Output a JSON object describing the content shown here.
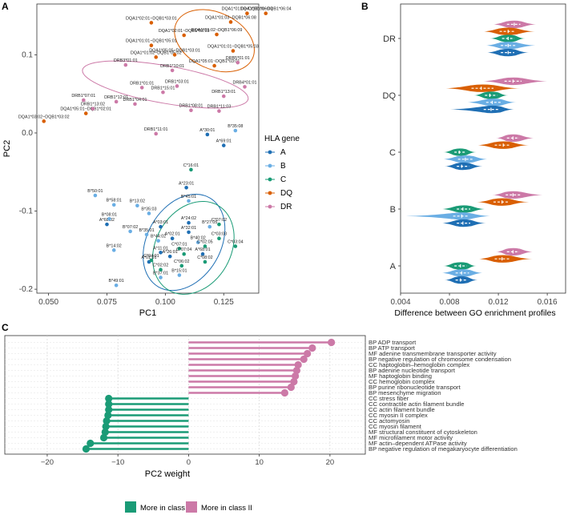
{
  "panels": {
    "a": "A",
    "b": "B",
    "c": "C"
  },
  "colors": {
    "A": "#1f6fb4",
    "B": "#6aaee4",
    "C": "#1a9b76",
    "DQ": "#d95f02",
    "DR": "#cc79a7",
    "class1": "#1a9b76",
    "class2": "#cc79a7"
  },
  "chart_data": [
    {
      "type": "scatter",
      "panel": "A",
      "xlabel": "PC1",
      "ylabel": "PC2",
      "xlim": [
        0.045,
        0.14
      ],
      "ylim": [
        -0.205,
        0.165
      ],
      "xticks": [
        0.05,
        0.075,
        0.1,
        0.125
      ],
      "xtick_labels": [
        "0.050",
        "0.075",
        "0.100",
        "0.125"
      ],
      "yticks": [
        0.1,
        0.0,
        -0.1,
        -0.2
      ],
      "ytick_labels": [
        "0.1",
        "0.0",
        "-0.1",
        "-0.2"
      ],
      "legend_title": "HLA gene",
      "legend_position": "right",
      "legend": [
        "A",
        "B",
        "C",
        "DQ",
        "DR"
      ],
      "series": [
        {
          "name": "A",
          "points": [
            {
              "label": "A*30:01",
              "x": 0.118,
              "y": -0.002
            },
            {
              "label": "A*69:01",
              "x": 0.125,
              "y": -0.016
            },
            {
              "label": "A*23:01",
              "x": 0.109,
              "y": -0.07
            },
            {
              "label": "A*24:02",
              "x": 0.11,
              "y": -0.115
            },
            {
              "label": "A*68:02",
              "x": 0.075,
              "y": -0.117
            },
            {
              "label": "A*03:01",
              "x": 0.098,
              "y": -0.12
            },
            {
              "label": "A*32:01",
              "x": 0.11,
              "y": -0.127
            },
            {
              "label": "A*02:01",
              "x": 0.103,
              "y": -0.135
            },
            {
              "label": "A*11:01",
              "x": 0.098,
              "y": -0.153
            },
            {
              "label": "A*68:01",
              "x": 0.116,
              "y": -0.155
            },
            {
              "label": "A*26:01",
              "x": 0.102,
              "y": -0.158
            },
            {
              "label": "A*01:01",
              "x": 0.093,
              "y": -0.165
            }
          ]
        },
        {
          "name": "B",
          "points": [
            {
              "label": "B*35:08",
              "x": 0.13,
              "y": 0.003
            },
            {
              "label": "B*45:01",
              "x": 0.11,
              "y": -0.087
            },
            {
              "label": "B*50:01",
              "x": 0.07,
              "y": -0.08
            },
            {
              "label": "B*58:01",
              "x": 0.078,
              "y": -0.092
            },
            {
              "label": "B*13:02",
              "x": 0.088,
              "y": -0.093
            },
            {
              "label": "B*08:01",
              "x": 0.076,
              "y": -0.11
            },
            {
              "label": "B*07:02",
              "x": 0.085,
              "y": -0.126
            },
            {
              "label": "B*35:01",
              "x": 0.092,
              "y": -0.13
            },
            {
              "label": "B*44:02",
              "x": 0.097,
              "y": -0.138
            },
            {
              "label": "B*14:02",
              "x": 0.078,
              "y": -0.15
            },
            {
              "label": "B*15:01",
              "x": 0.106,
              "y": -0.182
            },
            {
              "label": "B*37:01",
              "x": 0.098,
              "y": -0.185
            },
            {
              "label": "B*49:01",
              "x": 0.079,
              "y": -0.195
            },
            {
              "label": "B*40:02",
              "x": 0.114,
              "y": -0.14
            },
            {
              "label": "B*27:05",
              "x": 0.119,
              "y": -0.12
            },
            {
              "label": "B*35:03",
              "x": 0.093,
              "y": -0.103
            }
          ]
        },
        {
          "name": "C",
          "points": [
            {
              "label": "C*16:01",
              "x": 0.111,
              "y": -0.047
            },
            {
              "label": "C*07:02",
              "x": 0.123,
              "y": -0.117
            },
            {
              "label": "C*03:03",
              "x": 0.123,
              "y": -0.135
            },
            {
              "label": "C*03:04",
              "x": 0.13,
              "y": -0.145
            },
            {
              "label": "C*07:01",
              "x": 0.106,
              "y": -0.148
            },
            {
              "label": "C*02:05",
              "x": 0.117,
              "y": -0.145
            },
            {
              "label": "C*07:04",
              "x": 0.108,
              "y": -0.155
            },
            {
              "label": "C*04:01",
              "x": 0.094,
              "y": -0.163
            },
            {
              "label": "C*06:02",
              "x": 0.107,
              "y": -0.17
            },
            {
              "label": "C*02:02",
              "x": 0.098,
              "y": -0.175
            },
            {
              "label": "C*08:02",
              "x": 0.117,
              "y": -0.165
            }
          ]
        },
        {
          "name": "DQ",
          "points": [
            {
              "label": "DQA1*02:01~DQB1*03:01",
              "x": 0.094,
              "y": 0.141
            },
            {
              "label": "DQA1*02:01~DQB1*03:03",
              "x": 0.108,
              "y": 0.125
            },
            {
              "label": "DQA1*01:03~DQB1*06:03",
              "x": 0.135,
              "y": 0.153
            },
            {
              "label": "DQA1*02:01~DQB1*06:04",
              "x": 0.143,
              "y": 0.153
            },
            {
              "label": "DQA1*01:03~DQB1*06:08",
              "x": 0.128,
              "y": 0.142
            },
            {
              "label": "DQA1*01:01~DQB1*05:01",
              "x": 0.094,
              "y": 0.112
            },
            {
              "label": "DQA1*01:02~DQB1*05:02",
              "x": 0.096,
              "y": 0.097
            },
            {
              "label": "DQA1*05:05~DQB1*03:01",
              "x": 0.104,
              "y": 0.1
            },
            {
              "label": "DQA1*05:01~DQB1*02:01",
              "x": 0.066,
              "y": 0.025
            },
            {
              "label": "DQA1*03:02~DQB1*03:02",
              "x": 0.048,
              "y": 0.015
            },
            {
              "label": "DQA1*01:02~DQB1*06:09",
              "x": 0.122,
              "y": 0.126
            },
            {
              "label": "DQA1*05:01~DQB1*03:01",
              "x": 0.121,
              "y": 0.086
            },
            {
              "label": "DQA1*01:01~DQB1*05:03",
              "x": 0.129,
              "y": 0.105
            }
          ]
        },
        {
          "name": "DR",
          "points": [
            {
              "label": "DRB3*01:01",
              "x": 0.083,
              "y": 0.087
            },
            {
              "label": "DRB1*07:01",
              "x": 0.065,
              "y": 0.042
            },
            {
              "label": "DRB1*12:01",
              "x": 0.079,
              "y": 0.04
            },
            {
              "label": "DRB1*01:01",
              "x": 0.09,
              "y": 0.058
            },
            {
              "label": "DRB1*15:01",
              "x": 0.099,
              "y": 0.052
            },
            {
              "label": "DRB1*03:01",
              "x": 0.105,
              "y": 0.06
            },
            {
              "label": "DRB1*13:02",
              "x": 0.069,
              "y": 0.031
            },
            {
              "label": "DRB1*04:01",
              "x": 0.087,
              "y": 0.037
            },
            {
              "label": "DRB1*08:01",
              "x": 0.111,
              "y": 0.029
            },
            {
              "label": "DRB1*11:01",
              "x": 0.096,
              "y": -0.001
            },
            {
              "label": "DRB1*11:03",
              "x": 0.123,
              "y": 0.028
            },
            {
              "label": "DRB1*13:01",
              "x": 0.125,
              "y": 0.047
            },
            {
              "label": "DRB4*01:01",
              "x": 0.134,
              "y": 0.059
            },
            {
              "label": "DRB1*10:01",
              "x": 0.103,
              "y": 0.08
            },
            {
              "label": "DRB5*01:01",
              "x": 0.131,
              "y": 0.09
            }
          ]
        }
      ]
    },
    {
      "type": "violin",
      "panel": "B",
      "xlabel": "Difference between GO enrichment profiles",
      "xlim": [
        0.004,
        0.0175
      ],
      "xticks": [
        0.004,
        0.008,
        0.012,
        0.016
      ],
      "xtick_labels": [
        "0.004",
        "0.008",
        "0.012",
        "0.016"
      ],
      "categories": [
        "DR",
        "DQ",
        "C",
        "B",
        "A"
      ],
      "series_order": [
        "DR",
        "DQ",
        "C",
        "B",
        "A"
      ],
      "groups": [
        {
          "category": "DR",
          "violins": [
            {
              "series": "DR",
              "min": 0.0115,
              "q1": 0.0127,
              "median": 0.0133,
              "q3": 0.0138,
              "max": 0.0152
            },
            {
              "series": "DQ",
              "min": 0.0107,
              "q1": 0.0121,
              "median": 0.0128,
              "q3": 0.0134,
              "max": 0.015
            },
            {
              "series": "C",
              "min": 0.0113,
              "q1": 0.0123,
              "median": 0.0128,
              "q3": 0.0133,
              "max": 0.0142
            },
            {
              "series": "B",
              "min": 0.0109,
              "q1": 0.0122,
              "median": 0.0128,
              "q3": 0.0134,
              "max": 0.0152
            },
            {
              "series": "A",
              "min": 0.011,
              "q1": 0.0122,
              "median": 0.0128,
              "q3": 0.0133,
              "max": 0.0145
            }
          ]
        },
        {
          "category": "DQ",
          "violins": [
            {
              "series": "DR",
              "min": 0.0106,
              "q1": 0.0125,
              "median": 0.0132,
              "q3": 0.0139,
              "max": 0.0162
            },
            {
              "series": "DQ",
              "min": 0.0075,
              "q1": 0.0098,
              "median": 0.0106,
              "q3": 0.0116,
              "max": 0.0138
            },
            {
              "series": "C",
              "min": 0.01,
              "q1": 0.0109,
              "median": 0.0113,
              "q3": 0.0119,
              "max": 0.0128
            },
            {
              "series": "B",
              "min": 0.0093,
              "q1": 0.011,
              "median": 0.0115,
              "q3": 0.0122,
              "max": 0.0135
            },
            {
              "series": "A",
              "min": 0.0078,
              "q1": 0.0108,
              "median": 0.0114,
              "q3": 0.0121,
              "max": 0.0133
            }
          ]
        },
        {
          "category": "C",
          "violins": [
            {
              "series": "DR",
              "min": 0.0118,
              "q1": 0.0127,
              "median": 0.0132,
              "q3": 0.0137,
              "max": 0.015
            },
            {
              "series": "DQ",
              "min": 0.0102,
              "q1": 0.0117,
              "median": 0.0124,
              "q3": 0.013,
              "max": 0.0145
            },
            {
              "series": "C",
              "min": 0.0075,
              "q1": 0.0084,
              "median": 0.0088,
              "q3": 0.0093,
              "max": 0.0102
            },
            {
              "series": "B",
              "min": 0.0074,
              "q1": 0.0087,
              "median": 0.0093,
              "q3": 0.0099,
              "max": 0.0112
            },
            {
              "series": "A",
              "min": 0.0076,
              "q1": 0.0086,
              "median": 0.009,
              "q3": 0.0096,
              "max": 0.0107
            }
          ]
        },
        {
          "category": "B",
          "violins": [
            {
              "series": "DR",
              "min": 0.0115,
              "q1": 0.0126,
              "median": 0.0132,
              "q3": 0.0138,
              "max": 0.0158
            },
            {
              "series": "DQ",
              "min": 0.0102,
              "q1": 0.0116,
              "median": 0.0123,
              "q3": 0.0129,
              "max": 0.0145
            },
            {
              "series": "C",
              "min": 0.0073,
              "q1": 0.0086,
              "median": 0.0091,
              "q3": 0.0097,
              "max": 0.011
            },
            {
              "series": "B",
              "min": 0.0043,
              "q1": 0.0083,
              "median": 0.009,
              "q3": 0.0096,
              "max": 0.0115
            },
            {
              "series": "A",
              "min": 0.0073,
              "q1": 0.0086,
              "median": 0.0091,
              "q3": 0.0097,
              "max": 0.011
            }
          ]
        },
        {
          "category": "A",
          "violins": [
            {
              "series": "DR",
              "min": 0.0118,
              "q1": 0.0127,
              "median": 0.0132,
              "q3": 0.0137,
              "max": 0.0149
            },
            {
              "series": "DQ",
              "min": 0.0103,
              "q1": 0.0117,
              "median": 0.0123,
              "q3": 0.013,
              "max": 0.0148
            },
            {
              "series": "C",
              "min": 0.0075,
              "q1": 0.0084,
              "median": 0.0089,
              "q3": 0.0094,
              "max": 0.0102
            },
            {
              "series": "B",
              "min": 0.0073,
              "q1": 0.0085,
              "median": 0.009,
              "q3": 0.0096,
              "max": 0.0108
            },
            {
              "series": "A",
              "min": 0.0076,
              "q1": 0.0085,
              "median": 0.0089,
              "q3": 0.0094,
              "max": 0.0103
            }
          ]
        }
      ]
    },
    {
      "type": "lollipop",
      "panel": "C",
      "xlabel": "PC2 weight",
      "xlim": [
        -26,
        25
      ],
      "xticks": [
        -20,
        -10,
        0,
        10,
        20
      ],
      "xtick_labels": [
        "−20",
        "−10",
        "0",
        "10",
        "20"
      ],
      "legend": [
        {
          "label": "More in class I",
          "key": "class1"
        },
        {
          "label": "More in class II",
          "key": "class2"
        }
      ],
      "terms": [
        {
          "label": "BP ADP transport",
          "value": 20.2,
          "class": "class2"
        },
        {
          "label": "BP ATP transport",
          "value": 17.5,
          "class": "class2"
        },
        {
          "label": "MF adenine transmembrane transporter activity",
          "value": 16.8,
          "class": "class2"
        },
        {
          "label": "BP negative regulation of chromosome condensation",
          "value": 16.3,
          "class": "class2"
        },
        {
          "label": "CC haptoglobin–hemoglobin complex",
          "value": 15.5,
          "class": "class2"
        },
        {
          "label": "BP adenine nucleotide transport",
          "value": 15.3,
          "class": "class2"
        },
        {
          "label": "MF haptoglobin binding",
          "value": 15.1,
          "class": "class2"
        },
        {
          "label": "CC hemoglobin complex",
          "value": 14.9,
          "class": "class2"
        },
        {
          "label": "BP purine ribonucleotide transport",
          "value": 14.5,
          "class": "class2"
        },
        {
          "label": "BP mesenchyme migration",
          "value": 13.6,
          "class": "class2"
        },
        {
          "label": "CC stress fiber",
          "value": -11.3,
          "class": "class1"
        },
        {
          "label": "CC contractile actin filament bundle",
          "value": -11.3,
          "class": "class1"
        },
        {
          "label": "CC actin filament bundle",
          "value": -11.3,
          "class": "class1"
        },
        {
          "label": "CC myosin II complex",
          "value": -11.4,
          "class": "class1"
        },
        {
          "label": "CC actomyosin",
          "value": -11.6,
          "class": "class1"
        },
        {
          "label": "CC myosin filament",
          "value": -11.7,
          "class": "class1"
        },
        {
          "label": "MF structural constituent of cytoskeleton",
          "value": -11.8,
          "class": "class1"
        },
        {
          "label": "MF microfilament motor activity",
          "value": -12.0,
          "class": "class1"
        },
        {
          "label": "MF actin–dependent ATPase activity",
          "value": -13.9,
          "class": "class1"
        },
        {
          "label": "BP negative regulation of megakaryocyte differentiation",
          "value": -14.5,
          "class": "class1"
        }
      ]
    }
  ]
}
